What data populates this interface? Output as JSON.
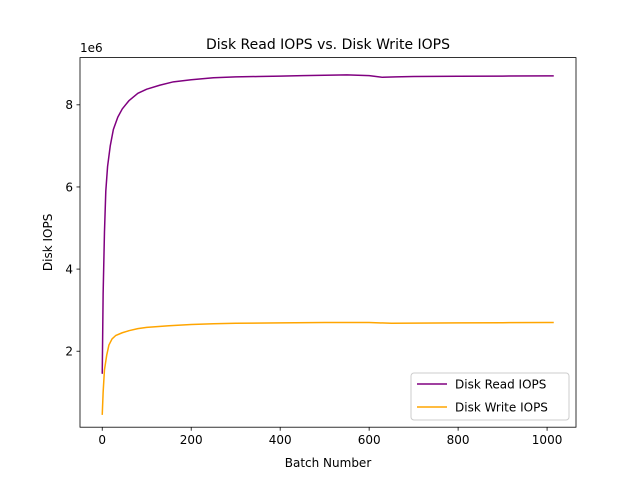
{
  "chart_data": {
    "type": "line",
    "title": "Disk Read IOPS vs. Disk Write IOPS",
    "xlabel": "Batch Number",
    "ylabel": "Disk IOPS",
    "offset_label": "1e6",
    "xlim": [
      -50,
      1065
    ],
    "ylim": [
      150000,
      9150000
    ],
    "xticks": [
      0,
      200,
      400,
      600,
      800,
      1000
    ],
    "yticks": [
      2000000,
      4000000,
      6000000,
      8000000
    ],
    "xtick_labels": [
      "0",
      "200",
      "400",
      "600",
      "800",
      "1000"
    ],
    "ytick_labels": [
      "2",
      "4",
      "6",
      "8"
    ],
    "grid": false,
    "legend_position": "lower right",
    "series": [
      {
        "name": "Disk Read IOPS",
        "color": "#800080",
        "points": [
          [
            0,
            1450000
          ],
          [
            2,
            3400000
          ],
          [
            5,
            4900000
          ],
          [
            8,
            5900000
          ],
          [
            12,
            6500000
          ],
          [
            18,
            7000000
          ],
          [
            25,
            7400000
          ],
          [
            35,
            7700000
          ],
          [
            45,
            7900000
          ],
          [
            60,
            8100000
          ],
          [
            80,
            8280000
          ],
          [
            100,
            8380000
          ],
          [
            130,
            8480000
          ],
          [
            160,
            8560000
          ],
          [
            200,
            8610000
          ],
          [
            250,
            8660000
          ],
          [
            300,
            8680000
          ],
          [
            350,
            8690000
          ],
          [
            400,
            8700000
          ],
          [
            450,
            8710000
          ],
          [
            500,
            8720000
          ],
          [
            550,
            8730000
          ],
          [
            600,
            8710000
          ],
          [
            630,
            8670000
          ],
          [
            660,
            8680000
          ],
          [
            700,
            8690000
          ],
          [
            800,
            8695000
          ],
          [
            900,
            8700000
          ],
          [
            1000,
            8705000
          ],
          [
            1015,
            8705000
          ]
        ]
      },
      {
        "name": "Disk Write IOPS",
        "color": "#FFA500",
        "points": [
          [
            0,
            450000
          ],
          [
            2,
            1000000
          ],
          [
            5,
            1550000
          ],
          [
            10,
            1900000
          ],
          [
            15,
            2150000
          ],
          [
            22,
            2300000
          ],
          [
            30,
            2380000
          ],
          [
            45,
            2450000
          ],
          [
            60,
            2500000
          ],
          [
            80,
            2550000
          ],
          [
            100,
            2580000
          ],
          [
            150,
            2620000
          ],
          [
            200,
            2650000
          ],
          [
            250,
            2670000
          ],
          [
            300,
            2680000
          ],
          [
            400,
            2690000
          ],
          [
            500,
            2700000
          ],
          [
            600,
            2700000
          ],
          [
            650,
            2680000
          ],
          [
            700,
            2685000
          ],
          [
            800,
            2690000
          ],
          [
            900,
            2695000
          ],
          [
            1000,
            2700000
          ],
          [
            1015,
            2700000
          ]
        ]
      }
    ]
  }
}
